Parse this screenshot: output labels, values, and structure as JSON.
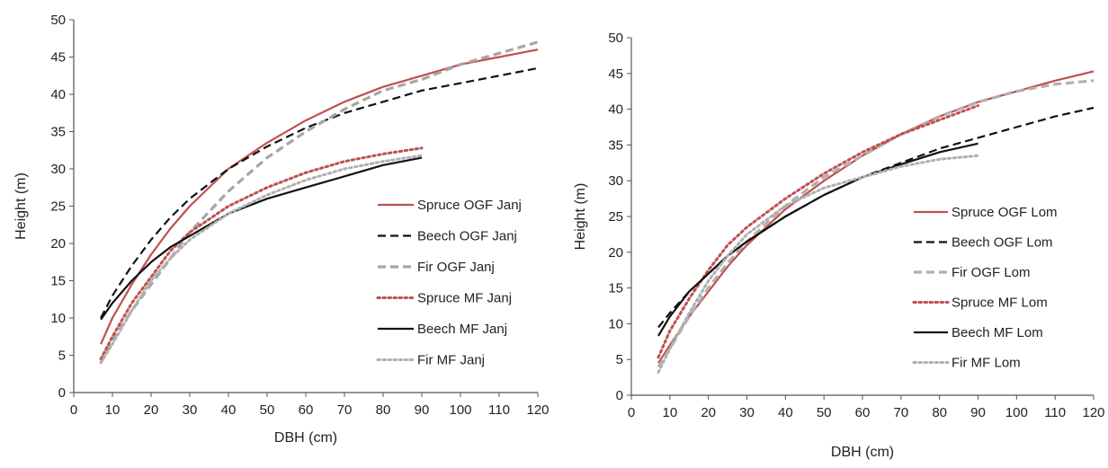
{
  "chart_data": [
    {
      "type": "line",
      "xlabel": "DBH (cm)",
      "ylabel": "Height (m)",
      "xlim": [
        0,
        120
      ],
      "ylim": [
        0,
        50
      ],
      "xticks": [
        0,
        10,
        20,
        30,
        40,
        50,
        60,
        70,
        80,
        90,
        100,
        110,
        120
      ],
      "yticks": [
        0,
        5,
        10,
        15,
        20,
        25,
        30,
        35,
        40,
        45,
        50
      ],
      "grid": false,
      "legend_position": "right",
      "series": [
        {
          "name": "Spruce OGF Janj",
          "color": "#c0504d",
          "style": "solid",
          "x": [
            7,
            10,
            15,
            20,
            25,
            30,
            40,
            50,
            60,
            70,
            80,
            90,
            100,
            110,
            120
          ],
          "y": [
            6.5,
            10,
            14.5,
            18.5,
            22,
            25,
            30,
            33.5,
            36.5,
            39,
            41,
            42.5,
            44,
            45,
            46
          ]
        },
        {
          "name": "Beech OGF Janj",
          "color": "#111111",
          "style": "dashed",
          "x": [
            7,
            10,
            15,
            20,
            25,
            30,
            40,
            50,
            60,
            70,
            80,
            90,
            100,
            110,
            120
          ],
          "y": [
            10,
            13,
            17,
            20.5,
            23.5,
            26,
            30,
            33,
            35.5,
            37.5,
            39,
            40.5,
            41.5,
            42.5,
            43.5
          ]
        },
        {
          "name": "Fir OGF Janj",
          "color": "#a6a6a6",
          "style": "dashed",
          "x": [
            7,
            10,
            15,
            20,
            25,
            30,
            40,
            50,
            60,
            70,
            80,
            90,
            100,
            110,
            120
          ],
          "y": [
            4,
            7,
            11,
            14.5,
            18,
            21.5,
            27,
            31.5,
            35,
            38,
            40.5,
            42,
            44,
            45.5,
            47
          ]
        },
        {
          "name": "Spruce MF Janj",
          "color": "#c0504d",
          "style": "dotted",
          "x": [
            7,
            10,
            15,
            20,
            25,
            30,
            40,
            50,
            60,
            70,
            80,
            90
          ],
          "y": [
            4.5,
            7.5,
            12,
            15.5,
            19,
            21.5,
            25,
            27.5,
            29.5,
            31,
            32,
            32.8
          ]
        },
        {
          "name": "Beech MF Janj",
          "color": "#111111",
          "style": "solid",
          "x": [
            7,
            10,
            15,
            20,
            25,
            30,
            40,
            50,
            60,
            70,
            80,
            90
          ],
          "y": [
            9.8,
            12,
            15,
            17.5,
            19.5,
            21,
            24,
            26,
            27.5,
            29,
            30.5,
            31.5
          ]
        },
        {
          "name": "Fir MF Janj",
          "color": "#b0b0b0",
          "style": "dotted",
          "x": [
            7,
            10,
            15,
            20,
            25,
            30,
            40,
            50,
            60,
            70,
            80,
            90
          ],
          "y": [
            4,
            6.5,
            11,
            15,
            18,
            20.5,
            24,
            26.5,
            28.5,
            30,
            31,
            31.8
          ]
        }
      ]
    },
    {
      "type": "line",
      "xlabel": "DBH (cm)",
      "ylabel": "Height (m)",
      "xlim": [
        0,
        120
      ],
      "ylim": [
        0,
        50
      ],
      "xticks": [
        0,
        10,
        20,
        30,
        40,
        50,
        60,
        70,
        80,
        90,
        100,
        110,
        120
      ],
      "yticks": [
        0,
        5,
        10,
        15,
        20,
        25,
        30,
        35,
        40,
        45,
        50
      ],
      "grid": false,
      "legend_position": "right",
      "series": [
        {
          "name": "Spruce OGF Lom",
          "color": "#c0504d",
          "style": "solid",
          "x": [
            7,
            10,
            15,
            20,
            25,
            30,
            40,
            50,
            60,
            70,
            80,
            90,
            100,
            110,
            120
          ],
          "y": [
            4.5,
            7,
            11,
            14.5,
            18,
            21,
            26,
            30,
            33.5,
            36.5,
            39,
            41,
            42.5,
            44,
            45.3
          ]
        },
        {
          "name": "Beech OGF Lom",
          "color": "#111111",
          "style": "dashed",
          "x": [
            7,
            10,
            15,
            20,
            25,
            30,
            40,
            50,
            60,
            70,
            80,
            90,
            100,
            110,
            120
          ],
          "y": [
            9.5,
            11.5,
            14.5,
            17,
            19.5,
            21.5,
            25,
            28,
            30.5,
            32.5,
            34.5,
            36,
            37.5,
            39,
            40.2
          ]
        },
        {
          "name": "Fir OGF Lom",
          "color": "#b0b0b0",
          "style": "dashed",
          "x": [
            7,
            10,
            15,
            20,
            25,
            30,
            40,
            50,
            60,
            70,
            80,
            90,
            100,
            110,
            120
          ],
          "y": [
            4,
            6.5,
            11,
            15,
            18.5,
            21.5,
            26.5,
            30.5,
            33.5,
            36.5,
            39,
            41,
            42.5,
            43.5,
            44
          ]
        },
        {
          "name": "Spruce MF Lom",
          "color": "#c0504d",
          "style": "dotted",
          "x": [
            7,
            10,
            15,
            20,
            25,
            30,
            40,
            50,
            60,
            70,
            80,
            90
          ],
          "y": [
            5.3,
            9,
            13.5,
            17.5,
            21,
            23.5,
            27.5,
            31,
            34,
            36.5,
            38.5,
            40.5
          ]
        },
        {
          "name": "Beech MF Lom",
          "color": "#111111",
          "style": "solid",
          "x": [
            7,
            10,
            15,
            20,
            25,
            30,
            40,
            50,
            60,
            70,
            80,
            90
          ],
          "y": [
            8.3,
            11,
            14.5,
            17,
            19.5,
            21.5,
            25,
            28,
            30.5,
            32.3,
            34,
            35.2
          ]
        },
        {
          "name": "Fir MF Lom",
          "color": "#b0b0b0",
          "style": "dotted",
          "x": [
            7,
            10,
            15,
            20,
            25,
            30,
            40,
            50,
            60,
            70,
            80,
            90
          ],
          "y": [
            3.2,
            6.5,
            11.5,
            16,
            19.5,
            22.5,
            26.5,
            29,
            30.5,
            32,
            33,
            33.5
          ]
        }
      ]
    }
  ]
}
